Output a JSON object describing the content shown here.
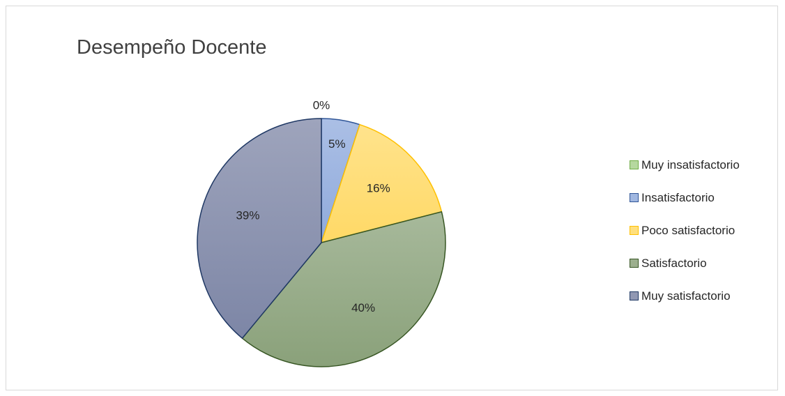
{
  "chart_data": {
    "type": "pie",
    "title": "Desempeño Docente",
    "categories": [
      "Muy insatisfactorio",
      "Insatisfactorio",
      "Poco satisfactorio",
      "Satisfactorio",
      "Muy satisfactorio"
    ],
    "values": [
      0,
      5,
      16,
      40,
      39
    ],
    "labels": [
      "0%",
      "5%",
      "16%",
      "40%",
      "39%"
    ],
    "legend_position": "right",
    "start_angle": "12 o'clock, clockwise",
    "colors": [
      "#a9d18e",
      "#8faadc",
      "#ffd966",
      "#8aa17a",
      "#7d86a6"
    ],
    "border_colors": [
      "#70ad47",
      "#2f5597",
      "#ffc000",
      "#375623",
      "#1f3864"
    ]
  }
}
